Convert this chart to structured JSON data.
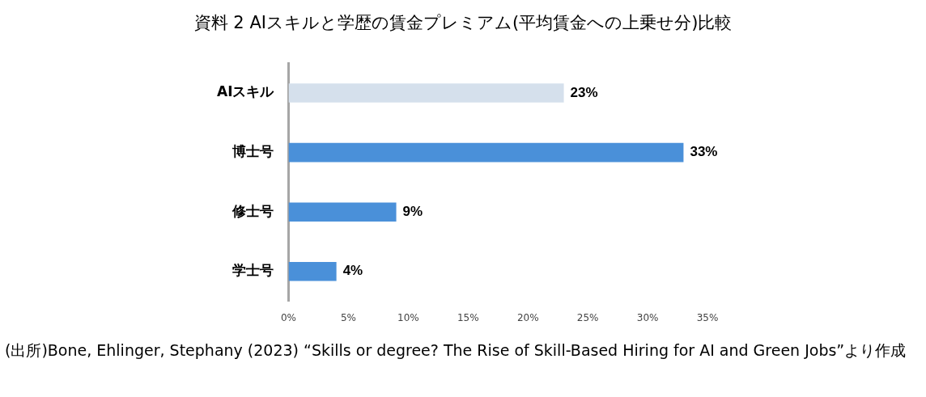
{
  "chart_data": {
    "type": "bar",
    "orientation": "horizontal",
    "title": "資料 2 AIスキルと学歴の賃金プレミアム(平均賃金への上乗せ分)比較",
    "categories": [
      "AIスキル",
      "博士号",
      "修士号",
      "学士号"
    ],
    "values": [
      23,
      33,
      9,
      4
    ],
    "colors": [
      "#d5e0ec",
      "#4a90d9",
      "#4a90d9",
      "#4a90d9"
    ],
    "value_labels": [
      "23%",
      "33%",
      "9%",
      "4%"
    ],
    "xlim": [
      0,
      35
    ],
    "xticks": [
      {
        "value": 0,
        "label": "0%"
      },
      {
        "value": 5,
        "label": "5%"
      },
      {
        "value": 10,
        "label": "10%"
      },
      {
        "value": 15,
        "label": "15%"
      },
      {
        "value": 20,
        "label": "20%"
      },
      {
        "value": 25,
        "label": "25%"
      },
      {
        "value": 30,
        "label": "30%"
      },
      {
        "value": 35,
        "label": "35%"
      }
    ],
    "grid": false,
    "legend": false,
    "annotations": [
      "(出所)Bone, Ehlinger, Stephany (2023) “Skills or degree? The Rise of Skill-Based Hiring for AI and Green Jobs”より作成"
    ]
  }
}
